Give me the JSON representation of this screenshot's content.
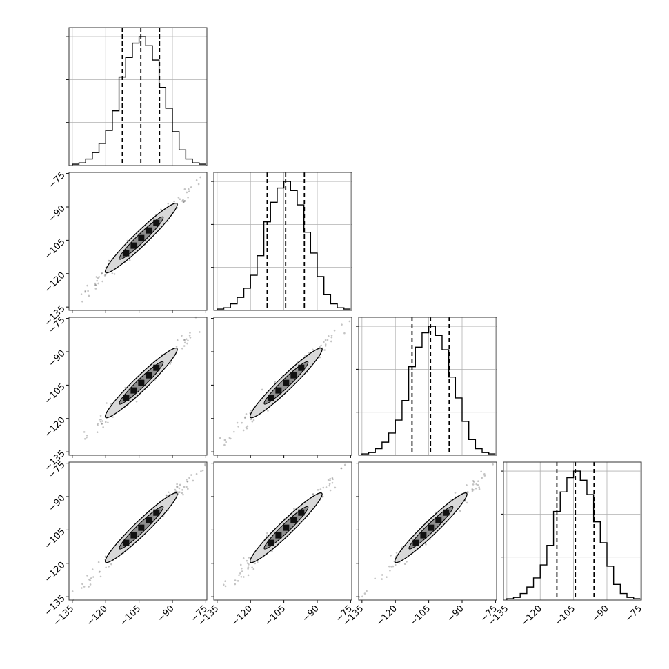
{
  "chart_data": {
    "type": "corner",
    "n_params": 4,
    "ticks": [
      -135,
      -120,
      -105,
      -90,
      -75
    ],
    "tick_labels": [
      "−135",
      "−120",
      "−105",
      "−90",
      "−75"
    ],
    "grid": true,
    "histograms": [
      {
        "bin_edges": [
          -135,
          -132,
          -129,
          -126,
          -123,
          -120,
          -117,
          -114,
          -111,
          -108,
          -105,
          -102,
          -99,
          -96,
          -93,
          -90,
          -87,
          -84,
          -81,
          -78,
          -75
        ],
        "counts": [
          0.01,
          0.02,
          0.05,
          0.1,
          0.17,
          0.27,
          0.42,
          0.68,
          0.83,
          0.94,
          0.99,
          0.92,
          0.81,
          0.6,
          0.44,
          0.26,
          0.12,
          0.05,
          0.02,
          0.01
        ],
        "quantiles": [
          -112.5,
          -104.2,
          -95.8
        ]
      },
      {
        "bin_edges": [
          -135,
          -132,
          -129,
          -126,
          -123,
          -120,
          -117,
          -114,
          -111,
          -108,
          -105,
          -102,
          -99,
          -96,
          -93,
          -90,
          -87,
          -84,
          -81,
          -78,
          -75
        ],
        "counts": [
          0.01,
          0.02,
          0.05,
          0.1,
          0.17,
          0.27,
          0.42,
          0.68,
          0.83,
          0.94,
          0.99,
          0.92,
          0.81,
          0.6,
          0.44,
          0.26,
          0.12,
          0.05,
          0.02,
          0.01
        ],
        "quantiles": [
          -112.5,
          -104.2,
          -95.8
        ]
      },
      {
        "bin_edges": [
          -135,
          -132,
          -129,
          -126,
          -123,
          -120,
          -117,
          -114,
          -111,
          -108,
          -105,
          -102,
          -99,
          -96,
          -93,
          -90,
          -87,
          -84,
          -81,
          -78,
          -75
        ],
        "counts": [
          0.01,
          0.02,
          0.05,
          0.1,
          0.17,
          0.27,
          0.42,
          0.68,
          0.83,
          0.94,
          0.99,
          0.92,
          0.81,
          0.6,
          0.44,
          0.26,
          0.12,
          0.05,
          0.02,
          0.01
        ],
        "quantiles": [
          -112.5,
          -104.2,
          -95.8
        ]
      },
      {
        "bin_edges": [
          -135,
          -132,
          -129,
          -126,
          -123,
          -120,
          -117,
          -114,
          -111,
          -108,
          -105,
          -102,
          -99,
          -96,
          -93,
          -90,
          -87,
          -84,
          -81,
          -78,
          -75
        ],
        "counts": [
          0.01,
          0.02,
          0.05,
          0.1,
          0.17,
          0.27,
          0.42,
          0.68,
          0.83,
          0.94,
          0.99,
          0.92,
          0.81,
          0.6,
          0.44,
          0.26,
          0.12,
          0.05,
          0.02,
          0.01
        ],
        "quantiles": [
          -112.5,
          -104.2,
          -95.8
        ]
      }
    ],
    "scatter": {
      "range": [
        -133,
        -76
      ],
      "center": [
        -104,
        -104
      ]
    },
    "colors": {
      "line": "#000000",
      "grid": "#b0b0b0",
      "fill": "#d9d9d9",
      "points": "#555555"
    }
  }
}
